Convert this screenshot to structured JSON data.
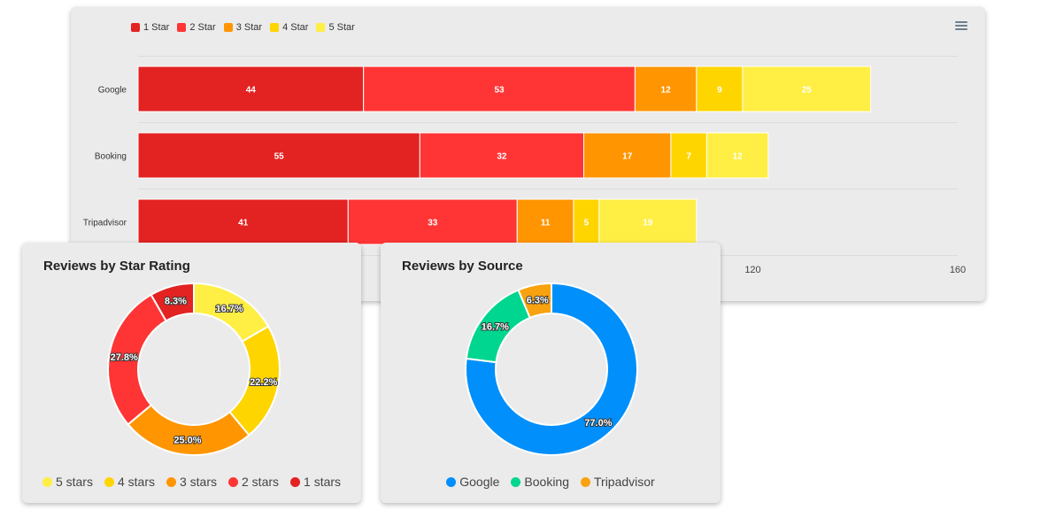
{
  "bar_chart_card": {
    "menu_icon": "menu-icon"
  },
  "star_card": {
    "title": "Reviews by Star Rating"
  },
  "source_card": {
    "title": "Reviews by Source"
  },
  "chart_data": [
    {
      "type": "bar",
      "orientation": "horizontal",
      "stacked": true,
      "categories": [
        "Google",
        "Booking",
        "Tripadvisor"
      ],
      "series": [
        {
          "name": "1 Star",
          "color": "#e32222",
          "values": [
            44,
            55,
            41
          ]
        },
        {
          "name": "2 Star",
          "color": "#ff3535",
          "values": [
            53,
            32,
            33
          ]
        },
        {
          "name": "3 Star",
          "color": "#ff9500",
          "values": [
            12,
            17,
            11
          ]
        },
        {
          "name": "4 Star",
          "color": "#ffd500",
          "values": [
            9,
            7,
            5
          ]
        },
        {
          "name": "5 Star",
          "color": "#ffee44",
          "values": [
            25,
            12,
            19
          ]
        }
      ],
      "xlim": [
        0,
        160
      ],
      "visible_x_ticks": [
        "120",
        "160"
      ],
      "legend": "top-left",
      "grid": true
    },
    {
      "type": "pie",
      "variant": "donut",
      "title": "Reviews by Star Rating",
      "slices": [
        {
          "label": "5 stars",
          "value": 16.7,
          "text": "16.7%",
          "color": "#ffee44"
        },
        {
          "label": "4 stars",
          "value": 22.2,
          "text": "22.2%",
          "color": "#ffd500"
        },
        {
          "label": "3 stars",
          "value": 25.0,
          "text": "25.0%",
          "color": "#ff9500"
        },
        {
          "label": "2 stars",
          "value": 27.8,
          "text": "27.8%",
          "color": "#ff3535"
        },
        {
          "label": "1 stars",
          "value": 8.3,
          "text": "8.3%",
          "color": "#e32222"
        }
      ],
      "legend": "bottom"
    },
    {
      "type": "pie",
      "variant": "donut",
      "title": "Reviews by Source",
      "slices": [
        {
          "label": "Google",
          "value": 77.0,
          "text": "77.0%",
          "color": "#008ffb"
        },
        {
          "label": "Booking",
          "value": 16.7,
          "text": "16.7%",
          "color": "#00d68f"
        },
        {
          "label": "Tripadvisor",
          "value": 6.3,
          "text": "6.3%",
          "color": "#f8a20f"
        }
      ],
      "legend": "bottom"
    }
  ]
}
